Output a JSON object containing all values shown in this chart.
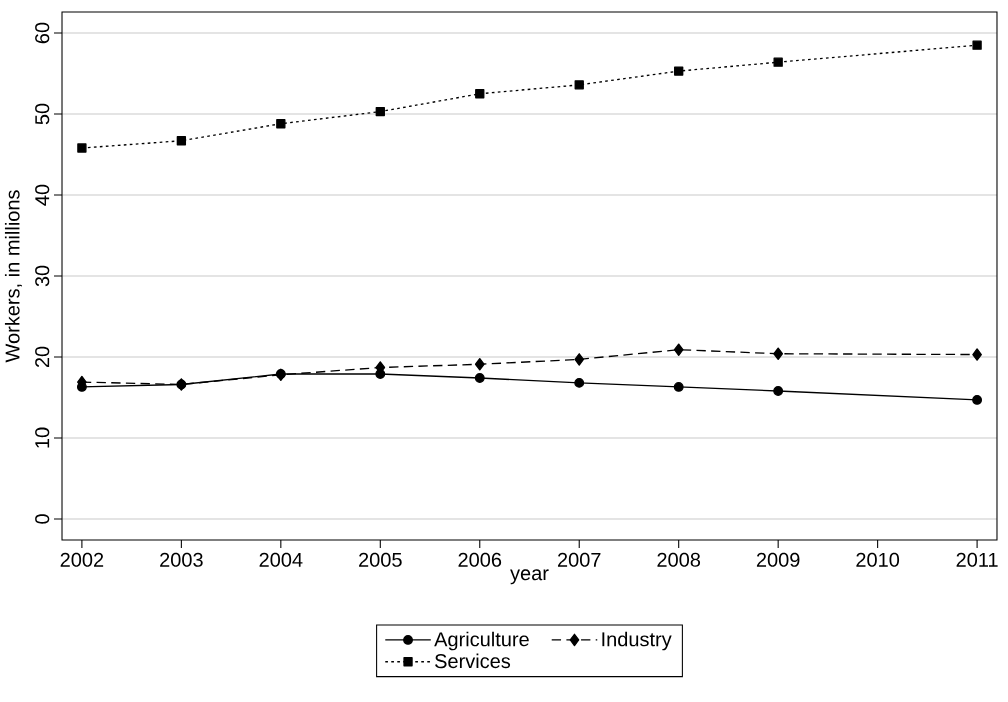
{
  "chart_data": {
    "type": "line",
    "xlabel": "year",
    "ylabel": "Workers, in millions",
    "x": [
      2002,
      2003,
      2004,
      2005,
      2006,
      2007,
      2008,
      2009,
      2011
    ],
    "series": [
      {
        "name": "Agriculture",
        "color": "#000000",
        "marker": "circle",
        "line_style": "solid",
        "values": [
          16.3,
          16.6,
          17.9,
          17.9,
          17.4,
          16.8,
          16.3,
          15.8,
          14.7
        ]
      },
      {
        "name": "Industry",
        "color": "#000000",
        "marker": "diamond",
        "line_style": "dashed",
        "values": [
          16.9,
          16.6,
          17.8,
          18.7,
          19.1,
          19.7,
          20.9,
          20.4,
          20.3
        ]
      },
      {
        "name": "Services",
        "color": "#000000",
        "marker": "square",
        "line_style": "dotted",
        "values": [
          45.8,
          46.7,
          48.8,
          50.3,
          52.5,
          53.6,
          55.3,
          56.4,
          58.5
        ]
      }
    ],
    "xlim": [
      2001.8,
      2011.2
    ],
    "ylim": [
      -2.6,
      62.6
    ],
    "xticks": [
      2002,
      2003,
      2004,
      2005,
      2006,
      2007,
      2008,
      2009,
      2010,
      2011
    ],
    "yticks": [
      0,
      10,
      20,
      30,
      40,
      50,
      60
    ],
    "grid": "y",
    "legend": "bottom"
  }
}
